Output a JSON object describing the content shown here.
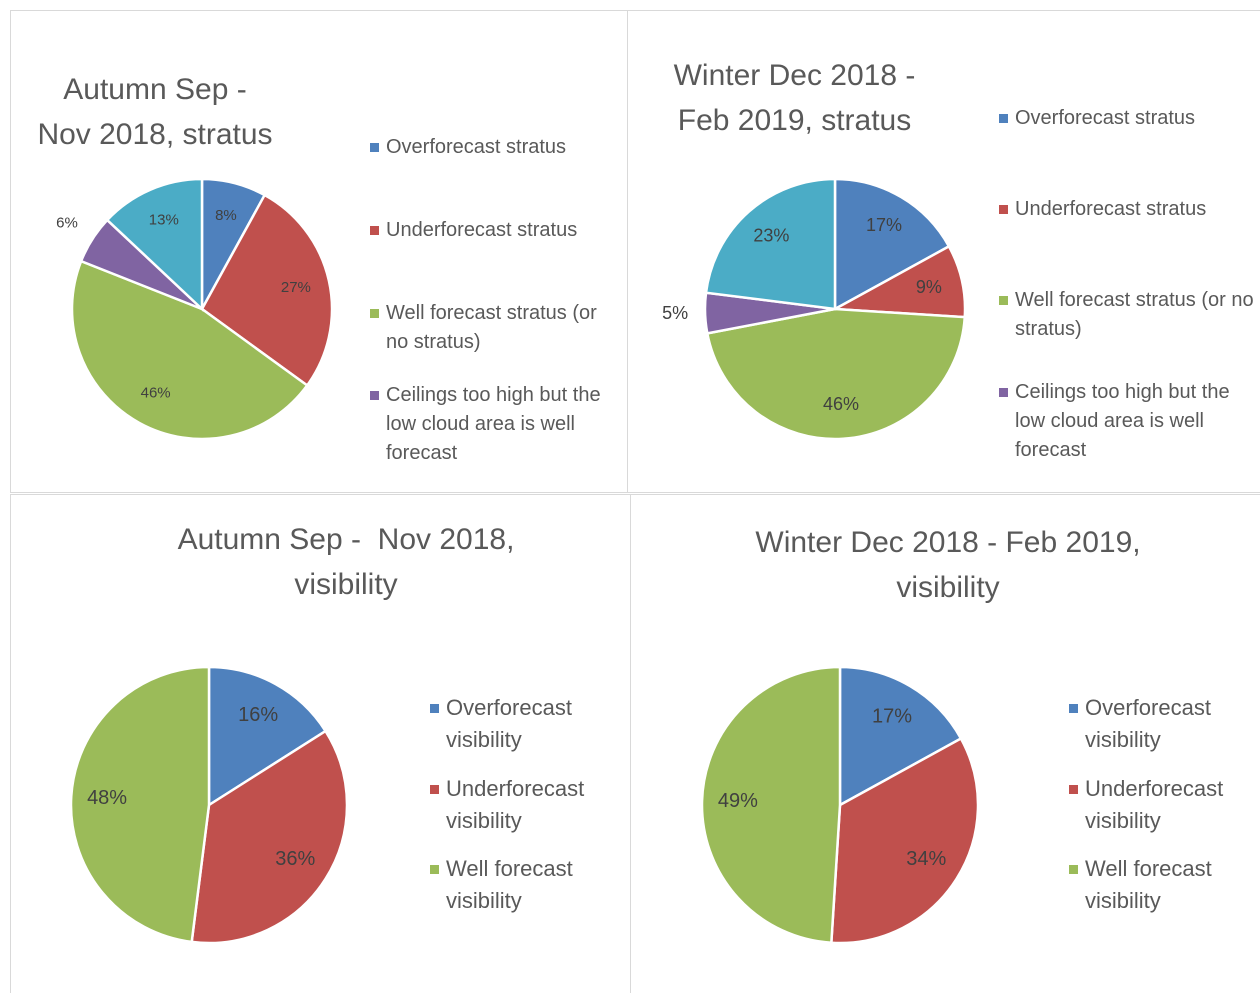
{
  "chart_data": [
    {
      "type": "pie",
      "title": "Autumn Sep - Nov 2018, stratus",
      "categories": [
        "Overforecast stratus",
        "Underforecast stratus",
        "Well forecast stratus (or no stratus)",
        "Ceilings too high but the low cloud area is well forecast",
        null
      ],
      "values": [
        8,
        27,
        46,
        6,
        13
      ],
      "value_labels": [
        "8%",
        "27%",
        "46%",
        "6%",
        "13%"
      ],
      "colors": [
        "#4f81bd",
        "#c0504d",
        "#9bbb59",
        "#8064a2",
        "#4bacc6"
      ]
    },
    {
      "type": "pie",
      "title": "Winter Dec 2018 - Feb 2019, stratus",
      "categories": [
        "Overforecast stratus",
        "Underforecast stratus",
        "Well forecast stratus (or no stratus)",
        "Ceilings too high but the low cloud area is well forecast",
        null
      ],
      "values": [
        17,
        9,
        46,
        5,
        23
      ],
      "value_labels": [
        "17%",
        "9%",
        "46%",
        "5%",
        "23%"
      ],
      "colors": [
        "#4f81bd",
        "#c0504d",
        "#9bbb59",
        "#8064a2",
        "#4bacc6"
      ]
    },
    {
      "type": "pie",
      "title": "Autumn Sep -  Nov 2018, visibility",
      "categories": [
        "Overforecast visibility",
        "Underforecast visibility",
        "Well forecast visibility"
      ],
      "values": [
        16,
        36,
        48
      ],
      "value_labels": [
        "16%",
        "36%",
        "48%"
      ],
      "colors": [
        "#4f81bd",
        "#c0504d",
        "#9bbb59"
      ]
    },
    {
      "type": "pie",
      "title": "Winter Dec 2018 - Feb 2019, visibility",
      "categories": [
        "Overforecast visibility",
        "Underforecast visibility",
        "Well forecast visibility"
      ],
      "values": [
        17,
        34,
        49
      ],
      "value_labels": [
        "17%",
        "34%",
        "49%"
      ],
      "colors": [
        "#4f81bd",
        "#c0504d",
        "#9bbb59"
      ]
    }
  ]
}
